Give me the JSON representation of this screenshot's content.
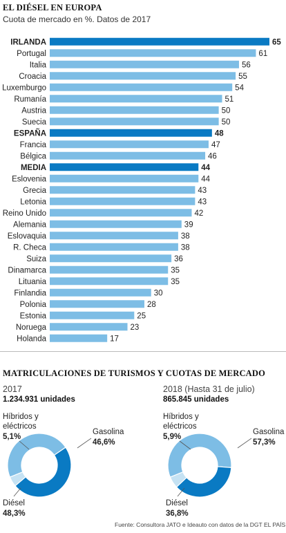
{
  "header": {
    "title": "EL DIÉSEL EN EUROPA",
    "subtitle": "Cuota de mercado en %. Datos de 2017"
  },
  "colors": {
    "highlight": "#0a7ac3",
    "normal": "#7dbde5",
    "diesel": "#0a7ac3",
    "gasolina": "#7dbde5",
    "hibridos": "#c5e2f3"
  },
  "chart_data": [
    {
      "type": "bar",
      "orientation": "horizontal",
      "categories": [
        "IRLANDA",
        "Portugal",
        "Italia",
        "Croacia",
        "Luxemburgo",
        "Rumanía",
        "Austria",
        "Suecia",
        "ESPAÑA",
        "Francia",
        "Bélgica",
        "MEDIA",
        "Eslovenia",
        "Grecia",
        "Letonia",
        "Reino Unido",
        "Alemania",
        "Eslovaquia",
        "R. Checa",
        "Suiza",
        "Dinamarca",
        "Lituania",
        "Finlandia",
        "Polonia",
        "Estonia",
        "Noruega",
        "Holanda"
      ],
      "values": [
        65,
        61,
        56,
        55,
        54,
        51,
        50,
        50,
        48,
        47,
        46,
        44,
        44,
        43,
        43,
        42,
        39,
        38,
        38,
        36,
        35,
        35,
        30,
        28,
        25,
        23,
        17
      ],
      "highlighted": [
        "IRLANDA",
        "ESPAÑA",
        "MEDIA"
      ],
      "title": "EL DIÉSEL EN EUROPA",
      "subtitle": "Cuota de mercado en %. Datos de 2017",
      "xlim": [
        0,
        65
      ],
      "grid": false
    },
    {
      "type": "pie",
      "donut": true,
      "year_label": "2017",
      "total_label": "1.234.931 unidades",
      "slices": [
        {
          "name": "Gasolina",
          "value": 46.6,
          "label": "46,6%"
        },
        {
          "name": "Diésel",
          "value": 48.3,
          "label": "48,3%"
        },
        {
          "name": "Híbridos y eléctricos",
          "value": 5.1,
          "label": "5,1%"
        }
      ]
    },
    {
      "type": "pie",
      "donut": true,
      "year_label": "2018 (Hasta 31 de julio)",
      "total_label": "865.845 unidades",
      "slices": [
        {
          "name": "Gasolina",
          "value": 57.3,
          "label": "57,3%"
        },
        {
          "name": "Diésel",
          "value": 36.8,
          "label": "36,8%"
        },
        {
          "name": "Híbridos y eléctricos",
          "value": 5.9,
          "label": "5,9%"
        }
      ]
    }
  ],
  "section2": {
    "title": "MATRICULACIONES DE TURISMOS Y CUOTAS DE MERCADO"
  },
  "labels": {
    "hibridos_line1": "Híbridos y",
    "hibridos_line2": "eléctricos",
    "gasolina": "Gasolina",
    "diesel": "Diésel"
  },
  "footer": {
    "source": "Fuente: Consultora JATO e Ideauto con datos de la DGT .",
    "brand": "EL PAÍS"
  }
}
